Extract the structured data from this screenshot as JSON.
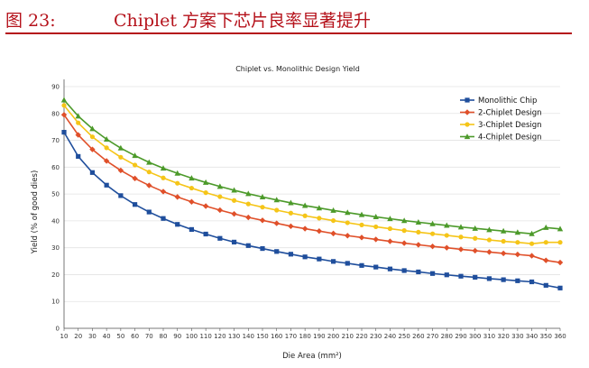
{
  "figure": {
    "label": "图 23:",
    "title": "Chiplet 方案下芯片良率显著提升"
  },
  "chart_data": {
    "type": "line",
    "title": "Chiplet vs. Monolithic Design Yield",
    "xlabel": "Die Area (mm²)",
    "ylabel": "Yield (% of good dies)",
    "ylim": [
      0,
      90
    ],
    "yticks": [
      0,
      10,
      20,
      30,
      40,
      50,
      60,
      70,
      80,
      90
    ],
    "x": [
      10,
      20,
      30,
      40,
      50,
      60,
      70,
      80,
      90,
      100,
      110,
      120,
      130,
      140,
      150,
      160,
      170,
      180,
      190,
      200,
      210,
      220,
      230,
      240,
      250,
      260,
      270,
      280,
      290,
      300,
      310,
      320,
      330,
      340,
      350,
      360
    ],
    "legend_position": "top-right",
    "grid": "horizontal",
    "series": [
      {
        "name": "Monolithic Chip",
        "color": "#1f4e9c",
        "marker": "square",
        "values": [
          73,
          64,
          58,
          53.3,
          49.4,
          46.1,
          43.3,
          40.9,
          38.7,
          36.8,
          35.1,
          33.5,
          32.1,
          30.8,
          29.7,
          28.6,
          27.6,
          26.6,
          25.8,
          24.9,
          24.2,
          23.4,
          22.8,
          22.1,
          21.5,
          21,
          20.4,
          19.9,
          19.4,
          19,
          18.5,
          18.1,
          17.7,
          17.3,
          16,
          15
        ]
      },
      {
        "name": "2-Chiplet Design",
        "color": "#e0502a",
        "marker": "diamond",
        "values": [
          79.5,
          72,
          66.6,
          62.3,
          58.8,
          55.8,
          53.2,
          50.9,
          48.9,
          47.1,
          45.5,
          44,
          42.6,
          41.3,
          40.2,
          39.1,
          38,
          37.1,
          36.2,
          35.3,
          34.5,
          33.8,
          33.1,
          32.4,
          31.7,
          31.1,
          30.5,
          30,
          29.4,
          28.9,
          28.4,
          27.9,
          27.5,
          27,
          25.3,
          24.5
        ]
      },
      {
        "name": "3-Chiplet Design",
        "color": "#f5c518",
        "marker": "circle",
        "values": [
          83,
          76.5,
          71.3,
          67.2,
          63.7,
          60.8,
          58.2,
          56,
          54,
          52.2,
          50.5,
          49,
          47.6,
          46.3,
          45.1,
          44,
          42.9,
          41.9,
          41,
          40.1,
          39.3,
          38.5,
          37.8,
          37.1,
          36.4,
          35.8,
          35.2,
          34.6,
          34,
          33.5,
          32.9,
          32.4,
          32,
          31.5,
          32,
          32
        ]
      },
      {
        "name": "4-Chiplet Design",
        "color": "#4c9a2a",
        "marker": "triangle",
        "values": [
          85,
          79,
          74.3,
          70.4,
          67.1,
          64.3,
          61.8,
          59.6,
          57.7,
          55.9,
          54.3,
          52.8,
          51.4,
          50.1,
          48.9,
          47.8,
          46.7,
          45.7,
          44.8,
          43.9,
          43.1,
          42.3,
          41.5,
          40.8,
          40.1,
          39.5,
          38.9,
          38.3,
          37.7,
          37.2,
          36.7,
          36.2,
          35.7,
          35.2,
          37.5,
          37
        ]
      }
    ]
  }
}
